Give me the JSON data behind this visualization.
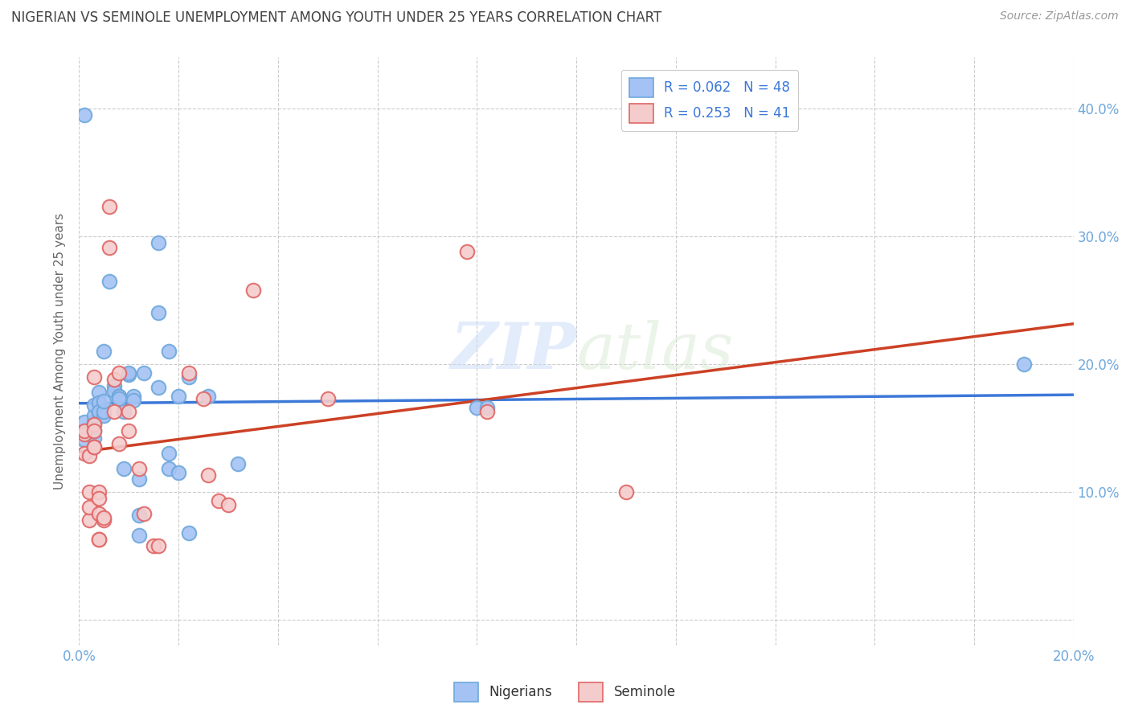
{
  "title": "NIGERIAN VS SEMINOLE UNEMPLOYMENT AMONG YOUTH UNDER 25 YEARS CORRELATION CHART",
  "source": "Source: ZipAtlas.com",
  "ylabel": "Unemployment Among Youth under 25 years",
  "ytick_values": [
    0.0,
    0.1,
    0.2,
    0.3,
    0.4
  ],
  "ytick_labels": [
    "",
    "10.0%",
    "20.0%",
    "30.0%",
    "40.0%"
  ],
  "xlim": [
    0.0,
    0.2
  ],
  "ylim": [
    -0.02,
    0.44
  ],
  "legend_line1": "R = 0.062   N = 48",
  "legend_line2": "R = 0.253   N = 41",
  "watermark": "ZIPatlas",
  "nigerian_color": "#a4c2f4",
  "seminole_color": "#f4cccc",
  "nigerian_edge_color": "#6fa8dc",
  "seminole_edge_color": "#e06666",
  "nigerian_line_color": "#3c78d8",
  "seminole_line_color": "#cc4125",
  "background_color": "#ffffff",
  "grid_color": "#cccccc",
  "title_color": "#434343",
  "source_color": "#999999",
  "tick_color": "#6fa8dc",
  "ylabel_color": "#666666",
  "nigerian_points": [
    [
      0.001,
      0.148
    ],
    [
      0.001,
      0.155
    ],
    [
      0.001,
      0.141
    ],
    [
      0.003,
      0.155
    ],
    [
      0.003,
      0.142
    ],
    [
      0.003,
      0.16
    ],
    [
      0.003,
      0.168
    ],
    [
      0.003,
      0.148
    ],
    [
      0.004,
      0.178
    ],
    [
      0.004,
      0.162
    ],
    [
      0.004,
      0.17
    ],
    [
      0.004,
      0.163
    ],
    [
      0.005,
      0.21
    ],
    [
      0.005,
      0.16
    ],
    [
      0.005,
      0.163
    ],
    [
      0.005,
      0.171
    ],
    [
      0.006,
      0.265
    ],
    [
      0.007,
      0.183
    ],
    [
      0.007,
      0.179
    ],
    [
      0.008,
      0.175
    ],
    [
      0.008,
      0.175
    ],
    [
      0.008,
      0.173
    ],
    [
      0.009,
      0.163
    ],
    [
      0.009,
      0.118
    ],
    [
      0.01,
      0.192
    ],
    [
      0.01,
      0.193
    ],
    [
      0.011,
      0.175
    ],
    [
      0.011,
      0.172
    ],
    [
      0.012,
      0.11
    ],
    [
      0.012,
      0.082
    ],
    [
      0.012,
      0.066
    ],
    [
      0.013,
      0.193
    ],
    [
      0.016,
      0.24
    ],
    [
      0.016,
      0.182
    ],
    [
      0.016,
      0.295
    ],
    [
      0.018,
      0.118
    ],
    [
      0.018,
      0.13
    ],
    [
      0.018,
      0.21
    ],
    [
      0.02,
      0.175
    ],
    [
      0.02,
      0.115
    ],
    [
      0.022,
      0.19
    ],
    [
      0.022,
      0.068
    ],
    [
      0.026,
      0.175
    ],
    [
      0.032,
      0.122
    ],
    [
      0.08,
      0.166
    ],
    [
      0.082,
      0.166
    ],
    [
      0.19,
      0.2
    ],
    [
      0.001,
      0.395
    ]
  ],
  "seminole_points": [
    [
      0.001,
      0.13
    ],
    [
      0.001,
      0.145
    ],
    [
      0.001,
      0.148
    ],
    [
      0.002,
      0.1
    ],
    [
      0.002,
      0.078
    ],
    [
      0.002,
      0.128
    ],
    [
      0.002,
      0.088
    ],
    [
      0.003,
      0.153
    ],
    [
      0.003,
      0.135
    ],
    [
      0.003,
      0.135
    ],
    [
      0.003,
      0.148
    ],
    [
      0.003,
      0.19
    ],
    [
      0.004,
      0.1
    ],
    [
      0.004,
      0.095
    ],
    [
      0.004,
      0.083
    ],
    [
      0.004,
      0.063
    ],
    [
      0.004,
      0.063
    ],
    [
      0.005,
      0.078
    ],
    [
      0.005,
      0.08
    ],
    [
      0.006,
      0.323
    ],
    [
      0.006,
      0.291
    ],
    [
      0.007,
      0.188
    ],
    [
      0.007,
      0.163
    ],
    [
      0.008,
      0.138
    ],
    [
      0.008,
      0.193
    ],
    [
      0.01,
      0.148
    ],
    [
      0.01,
      0.163
    ],
    [
      0.012,
      0.118
    ],
    [
      0.013,
      0.083
    ],
    [
      0.015,
      0.058
    ],
    [
      0.016,
      0.058
    ],
    [
      0.022,
      0.193
    ],
    [
      0.025,
      0.173
    ],
    [
      0.026,
      0.113
    ],
    [
      0.028,
      0.093
    ],
    [
      0.03,
      0.09
    ],
    [
      0.035,
      0.258
    ],
    [
      0.05,
      0.173
    ],
    [
      0.078,
      0.288
    ],
    [
      0.082,
      0.163
    ],
    [
      0.11,
      0.1
    ]
  ]
}
